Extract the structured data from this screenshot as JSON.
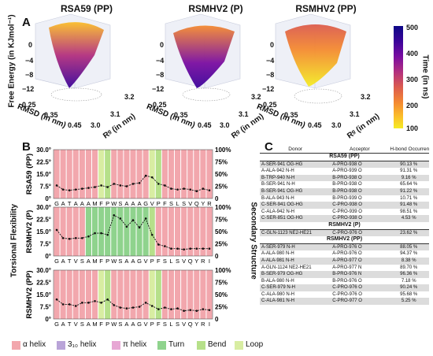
{
  "panel_a": {
    "letter": "A",
    "titles": [
      "RSA59 (PP)",
      "RSMHV2 (P)",
      "RSMHV2 (PP)"
    ],
    "z_label": "Free Energy (in KJmol⁻¹)",
    "z_ticks": [
      "0",
      "−4",
      "−8",
      "−12"
    ],
    "rmsd_label": "RMSD (in nm)",
    "rmsd_ticks": [
      "0.25",
      "0.35",
      "0.45"
    ],
    "rg_label": "Rᵍ (in nm)",
    "rg_ticks": [
      "3.0",
      "3.1",
      "3.2"
    ],
    "colorbar": {
      "label": "Time (in ns)",
      "ticks": [
        "500",
        "400",
        "300",
        "200",
        "100"
      ],
      "colors": [
        "#0d0887",
        "#3b049a",
        "#7a0da1",
        "#b3307e",
        "#dc5c4e",
        "#f48a31",
        "#fbbd2a",
        "#f5ec24"
      ]
    }
  },
  "panel_b": {
    "letter": "B",
    "ylabel_left": "Torsional Flexibility",
    "ylabel_right": "Secondary Structure",
    "colors": {
      "alpha_helix": "#f2a7ad",
      "three10_helix": "#b9a4d8",
      "pi_helix": "#e7a7d4",
      "turn": "#8fd38d",
      "bend": "#b6e08a",
      "loop": "#d8eda2"
    },
    "legend": [
      {
        "key": "alpha_helix",
        "label": "α helix"
      },
      {
        "key": "three10_helix",
        "label": "3₁₀ helix"
      },
      {
        "key": "pi_helix",
        "label": "π helix"
      },
      {
        "key": "turn",
        "label": "Turn"
      },
      {
        "key": "bend",
        "label": "Bend"
      },
      {
        "key": "loop",
        "label": "Loop"
      }
    ]
  },
  "chart_data": [
    {
      "type": "line",
      "title": "RSA59 (PP)",
      "categories": [
        "G",
        "A",
        "T",
        "A",
        "A",
        "A",
        "M",
        "F",
        "P",
        "W",
        "S",
        "A",
        "A",
        "A",
        "G",
        "V",
        "P",
        "F",
        "S",
        "L",
        "S",
        "V",
        "Q",
        "Y",
        "R"
      ],
      "ylim": [
        0,
        30
      ],
      "y_ticks": [
        "0°",
        "7.5°",
        "15.0°",
        "22.5°",
        "30.0°"
      ],
      "y2_ticks": [
        "0",
        "25%",
        "50%",
        "75%",
        "100%"
      ],
      "values": [
        8,
        5.5,
        5,
        5.5,
        6,
        6.5,
        7,
        8,
        7,
        9,
        8,
        7.5,
        9,
        9.5,
        14,
        13,
        9,
        8,
        6,
        5.5,
        6,
        5.5,
        4.5,
        6,
        5
      ],
      "secondary_structure": [
        "alpha_helix",
        "alpha_helix",
        "alpha_helix",
        "alpha_helix",
        "alpha_helix",
        "alpha_helix",
        "alpha_helix",
        "loop",
        "bend",
        "alpha_helix",
        "alpha_helix",
        "alpha_helix",
        "alpha_helix",
        "alpha_helix",
        "alpha_helix",
        "loop",
        "bend",
        "alpha_helix",
        "alpha_helix",
        "alpha_helix",
        "alpha_helix",
        "alpha_helix",
        "alpha_helix",
        "alpha_helix",
        "alpha_helix"
      ]
    },
    {
      "type": "line",
      "title": "RSMHV2 (P)",
      "categories": [
        "G",
        "A",
        "T",
        "V",
        "S",
        "A",
        "M",
        "F",
        "P",
        "W",
        "S",
        "A",
        "A",
        "G",
        "V",
        "P",
        "F",
        "S",
        "L",
        "S",
        "V",
        "Q",
        "Y",
        "R",
        "I"
      ],
      "ylim": [
        0,
        30
      ],
      "y_ticks": [
        "0°",
        "7.5°",
        "15.0°",
        "22.5°",
        "30.0°"
      ],
      "y2_ticks": [
        "0",
        "25%",
        "50%",
        "75%",
        "100%"
      ],
      "values": [
        16,
        11,
        10.5,
        11,
        11,
        12,
        14,
        14,
        13,
        25,
        23,
        18,
        22,
        17.5,
        23,
        13,
        7,
        6,
        4.5,
        4.5,
        4,
        4.5,
        4.5,
        4.5,
        4.5
      ],
      "secondary_structure": [
        "alpha_helix",
        "alpha_helix",
        "alpha_helix",
        "alpha_helix",
        "alpha_helix",
        "turn",
        "turn",
        "turn",
        "turn",
        "turn",
        "turn",
        "turn",
        "turn",
        "turn",
        "turn",
        "bend",
        "alpha_helix",
        "alpha_helix",
        "alpha_helix",
        "alpha_helix",
        "alpha_helix",
        "alpha_helix",
        "alpha_helix",
        "alpha_helix",
        "alpha_helix"
      ]
    },
    {
      "type": "line",
      "title": "RSMHV2 (PP)",
      "categories": [
        "G",
        "A",
        "T",
        "V",
        "S",
        "A",
        "M",
        "F",
        "P",
        "W",
        "S",
        "A",
        "A",
        "G",
        "V",
        "P",
        "F",
        "S",
        "L",
        "S",
        "V",
        "Q",
        "Y",
        "R",
        "I"
      ],
      "ylim": [
        0,
        30
      ],
      "y_ticks": [
        "0°",
        "7.5°",
        "15.0°",
        "22.5°",
        "30.0°"
      ],
      "y2_ticks": [
        "0",
        "25%",
        "50%",
        "75%",
        "100%"
      ],
      "values": [
        12,
        9,
        9,
        8,
        10,
        10,
        11,
        10,
        12,
        8.5,
        7,
        6.5,
        7,
        7.5,
        10,
        8,
        6,
        7,
        6,
        6.5,
        5,
        5.5,
        5,
        6,
        5.5
      ],
      "secondary_structure": [
        "alpha_helix",
        "alpha_helix",
        "alpha_helix",
        "alpha_helix",
        "alpha_helix",
        "alpha_helix",
        "alpha_helix",
        "loop",
        "bend",
        "alpha_helix",
        "alpha_helix",
        "alpha_helix",
        "alpha_helix",
        "alpha_helix",
        "alpha_helix",
        "loop",
        "bend",
        "alpha_helix",
        "alpha_helix",
        "alpha_helix",
        "alpha_helix",
        "alpha_helix",
        "alpha_helix",
        "alpha_helix",
        "alpha_helix"
      ]
    }
  ],
  "panel_c": {
    "letter": "C",
    "headers": [
      "Donor",
      "Acceptor",
      "H-bond Occurrence"
    ],
    "sections": [
      {
        "title": "RSA59 (PP)",
        "rows": [
          [
            "A-SER-941 OG-HG",
            "A-PRO-938 O",
            "90.13 %"
          ],
          [
            "A-ALA-942 N-H",
            "A-PRO-939 O",
            "91.31 %"
          ],
          [
            "B-TRP-940 N-H",
            "B-PRO-938 O",
            "9.16 %"
          ],
          [
            "B-SER-941 N-H",
            "B-PRO-938 O",
            "65.64 %"
          ],
          [
            "B-SER-941 OG-HG",
            "B-PRO-938 O",
            "91.22 %"
          ],
          [
            "B-ALA-943 N-H",
            "B-PRO-939 O",
            "10.71 %"
          ],
          [
            "C-SER-941 OG-HG",
            "C-PRO-938 O",
            "91.48 %"
          ],
          [
            "C-ALA-942 N-H",
            "C-PRO-939 O",
            "98.51 %"
          ],
          [
            "C-SER-851 OG-HG",
            "C-PRO-938 O",
            "4.53 %"
          ]
        ]
      },
      {
        "title": "RSMHV2 (P)",
        "rows": [
          [
            "C-GLN-1123 NE2-HE21",
            "C-PRO-976 O",
            "23.62 %"
          ]
        ]
      },
      {
        "title": "RSMHV2 (PP)",
        "rows": [
          [
            "A-SER-979 N-H",
            "A-PRO-976 O",
            "88.05 %"
          ],
          [
            "A-ALA-980 N-H",
            "A-PRO-976 O",
            "94.37 %"
          ],
          [
            "A-ALA-981 N-H",
            "A-PRO-977 O",
            "8.38 %"
          ],
          [
            "A-GLN-1124 NE2-HE21",
            "A-PRO-977 N",
            "89.70 %"
          ],
          [
            "B-SER-979 OG-HG",
            "B-PRO-976 N",
            "96.36 %"
          ],
          [
            "B-ALA-980 N-H",
            "B-PRO-976 O",
            "7.18 %"
          ],
          [
            "C-SER-979 N-H",
            "C-PRO-976 O",
            "90.24 %"
          ],
          [
            "C-ALA-980 N-H",
            "C-PRO-976 O",
            "95.68 %"
          ],
          [
            "C-ALA-981 N-H",
            "C-PRO-977 O",
            "5.25 %"
          ]
        ]
      }
    ]
  }
}
